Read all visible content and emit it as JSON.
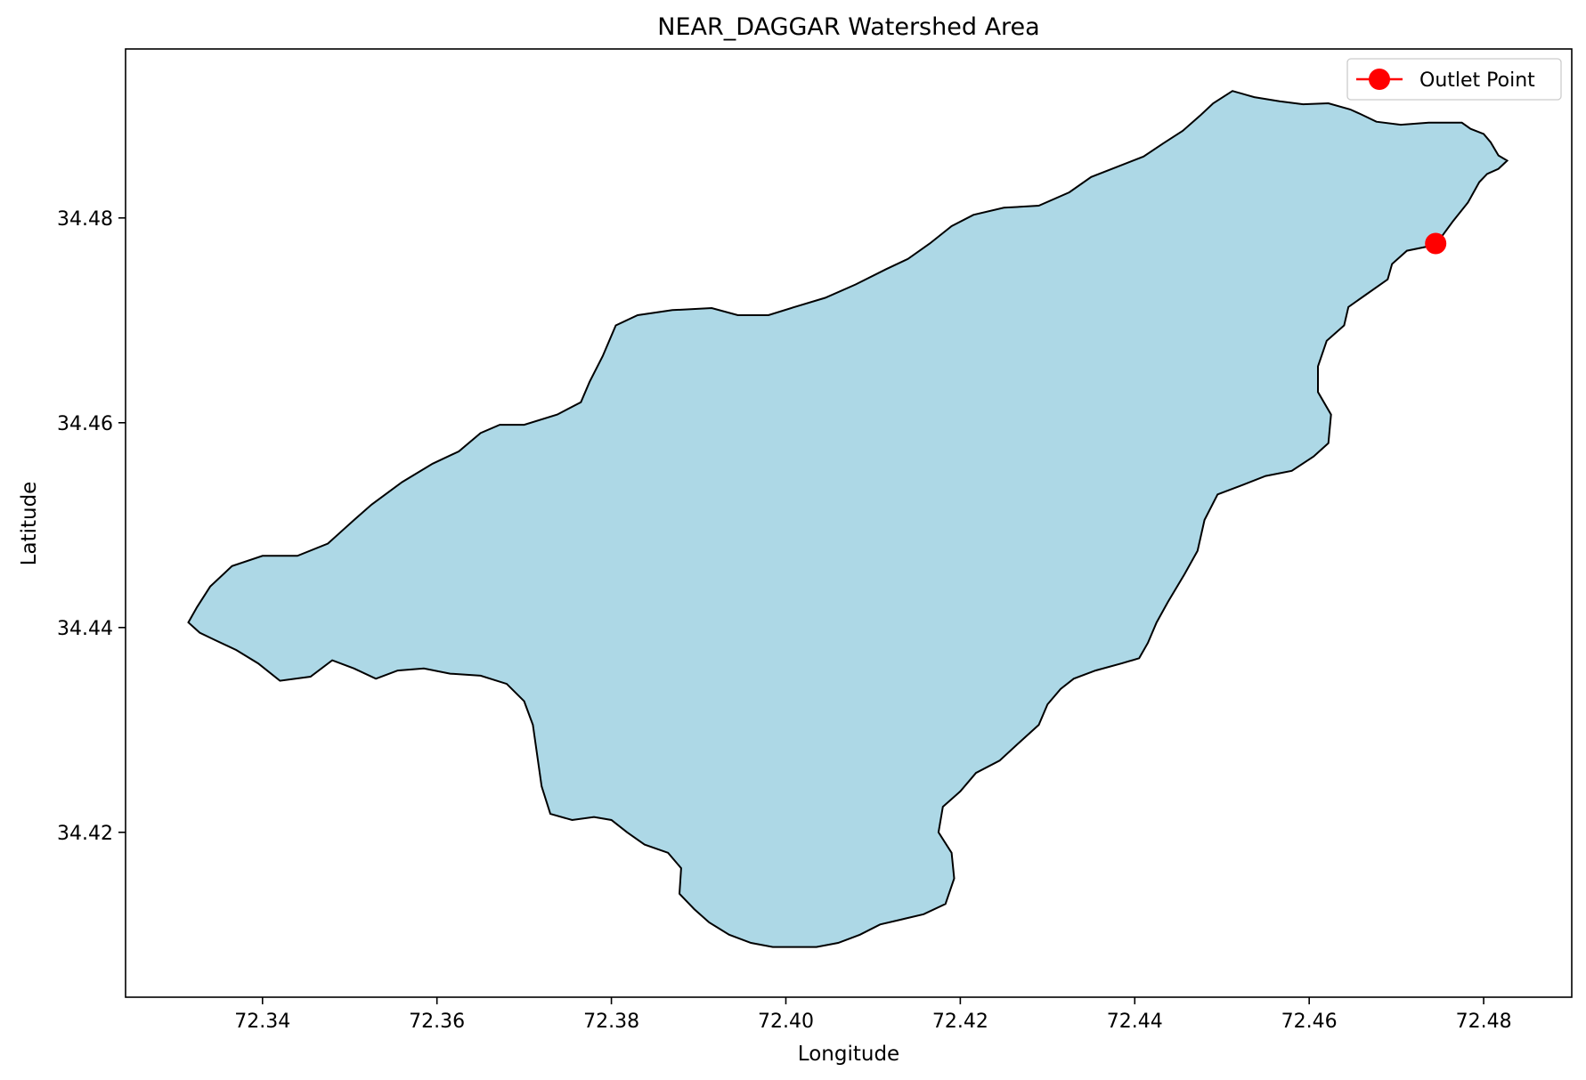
{
  "title": "NEAR_DAGGAR Watershed Area",
  "xlabel": "Longitude",
  "ylabel": "Latitude",
  "colors": {
    "watershed_fill": "#add8e6",
    "watershed_edge": "#000000",
    "outlet": "#ff0000",
    "axes": "#000000",
    "background": "#ffffff"
  },
  "legend": {
    "placement": "top-right",
    "entries": [
      {
        "label": "Outlet Point",
        "marker": "circle",
        "color": "#ff0000"
      }
    ]
  },
  "chart_data": {
    "type": "map",
    "title": "NEAR_DAGGAR Watershed Area",
    "xlabel": "Longitude",
    "ylabel": "Latitude",
    "xlim": [
      72.3243,
      72.4901
    ],
    "ylim": [
      34.4039,
      34.4965
    ],
    "xticks": [
      72.34,
      72.36,
      72.38,
      72.4,
      72.42,
      72.44,
      72.46,
      72.48
    ],
    "xtick_labels": [
      "72.34",
      "72.36",
      "72.38",
      "72.40",
      "72.42",
      "72.44",
      "72.46",
      "72.48"
    ],
    "yticks": [
      34.42,
      34.44,
      34.46,
      34.48
    ],
    "ytick_labels": [
      "34.42",
      "34.44",
      "34.46",
      "34.48"
    ],
    "grid": false,
    "legend_placement": "top-right",
    "outlet_point": {
      "name": "Outlet Point",
      "lon": 72.4745,
      "lat": 34.4775
    },
    "watershed_boundary": [
      [
        72.4512,
        34.4924
      ],
      [
        72.4537,
        34.4918
      ],
      [
        72.4566,
        34.4914
      ],
      [
        72.4593,
        34.4911
      ],
      [
        72.4622,
        34.4912
      ],
      [
        72.4647,
        34.4906
      ],
      [
        72.466,
        34.4901
      ],
      [
        72.4677,
        34.4894
      ],
      [
        72.4705,
        34.4891
      ],
      [
        72.4737,
        34.4893
      ],
      [
        72.4775,
        34.4893
      ],
      [
        72.4785,
        34.4887
      ],
      [
        72.48,
        34.4882
      ],
      [
        72.4808,
        34.4874
      ],
      [
        72.4817,
        34.4861
      ],
      [
        72.4827,
        34.4856
      ],
      [
        72.4817,
        34.4848
      ],
      [
        72.4804,
        34.4843
      ],
      [
        72.4795,
        34.4835
      ],
      [
        72.4782,
        34.4815
      ],
      [
        72.4765,
        34.4797
      ],
      [
        72.4752,
        34.4782
      ],
      [
        72.4735,
        34.4772
      ],
      [
        72.4712,
        34.4768
      ],
      [
        72.4695,
        34.4755
      ],
      [
        72.469,
        34.474
      ],
      [
        72.4665,
        34.4725
      ],
      [
        72.4645,
        34.4713
      ],
      [
        72.464,
        34.4695
      ],
      [
        72.462,
        34.468
      ],
      [
        72.461,
        34.4655
      ],
      [
        72.461,
        34.463
      ],
      [
        72.4625,
        34.4608
      ],
      [
        72.4622,
        34.458
      ],
      [
        72.4605,
        34.4567
      ],
      [
        72.458,
        34.4553
      ],
      [
        72.455,
        34.4548
      ],
      [
        72.452,
        34.4538
      ],
      [
        72.4495,
        34.453
      ],
      [
        72.448,
        34.4505
      ],
      [
        72.4472,
        34.4475
      ],
      [
        72.4457,
        34.4452
      ],
      [
        72.4438,
        34.4425
      ],
      [
        72.4425,
        34.4405
      ],
      [
        72.4415,
        34.4385
      ],
      [
        72.4405,
        34.437
      ],
      [
        72.4385,
        34.4365
      ],
      [
        72.4355,
        34.4358
      ],
      [
        72.433,
        34.435
      ],
      [
        72.4315,
        34.434
      ],
      [
        72.43,
        34.4325
      ],
      [
        72.429,
        34.4305
      ],
      [
        72.4268,
        34.4288
      ],
      [
        72.4245,
        34.427
      ],
      [
        72.4218,
        34.4258
      ],
      [
        72.42,
        34.424
      ],
      [
        72.418,
        34.4225
      ],
      [
        72.4175,
        34.42
      ],
      [
        72.419,
        34.418
      ],
      [
        72.4193,
        34.4155
      ],
      [
        72.4183,
        34.413
      ],
      [
        72.4158,
        34.412
      ],
      [
        72.4133,
        34.4115
      ],
      [
        72.4108,
        34.411
      ],
      [
        72.4085,
        34.41
      ],
      [
        72.406,
        34.4092
      ],
      [
        72.4035,
        34.4088
      ],
      [
        72.4008,
        34.4088
      ],
      [
        72.3985,
        34.4088
      ],
      [
        72.396,
        34.4092
      ],
      [
        72.3935,
        34.41
      ],
      [
        72.3912,
        34.4112
      ],
      [
        72.3895,
        34.4125
      ],
      [
        72.3878,
        34.414
      ],
      [
        72.388,
        34.4165
      ],
      [
        72.3865,
        34.418
      ],
      [
        72.3838,
        34.4188
      ],
      [
        72.3818,
        34.42
      ],
      [
        72.38,
        34.4212
      ],
      [
        72.378,
        34.4215
      ],
      [
        72.3755,
        34.4212
      ],
      [
        72.373,
        34.4218
      ],
      [
        72.372,
        34.4245
      ],
      [
        72.3715,
        34.4275
      ],
      [
        72.371,
        34.4305
      ],
      [
        72.37,
        34.4328
      ],
      [
        72.368,
        34.4345
      ],
      [
        72.365,
        34.4353
      ],
      [
        72.3615,
        34.4355
      ],
      [
        72.3585,
        34.436
      ],
      [
        72.3555,
        34.4358
      ],
      [
        72.353,
        34.435
      ],
      [
        72.3505,
        34.436
      ],
      [
        72.348,
        34.4368
      ],
      [
        72.3455,
        34.4352
      ],
      [
        72.342,
        34.4348
      ],
      [
        72.3395,
        34.4365
      ],
      [
        72.337,
        34.4378
      ],
      [
        72.3345,
        34.4388
      ],
      [
        72.3328,
        34.4395
      ],
      [
        72.3315,
        34.4405
      ],
      [
        72.3325,
        34.442
      ],
      [
        72.334,
        34.444
      ],
      [
        72.3365,
        34.446
      ],
      [
        72.34,
        34.447
      ],
      [
        72.344,
        34.447
      ],
      [
        72.3475,
        34.4482
      ],
      [
        72.3505,
        34.4505
      ],
      [
        72.3525,
        34.452
      ],
      [
        72.356,
        34.4542
      ],
      [
        72.3595,
        34.456
      ],
      [
        72.3625,
        34.4572
      ],
      [
        72.365,
        34.459
      ],
      [
        72.3672,
        34.4598
      ],
      [
        72.37,
        34.4598
      ],
      [
        72.3738,
        34.4608
      ],
      [
        72.3765,
        34.462
      ],
      [
        72.3775,
        34.464
      ],
      [
        72.379,
        34.4665
      ],
      [
        72.3805,
        34.4695
      ],
      [
        72.383,
        34.4705
      ],
      [
        72.387,
        34.471
      ],
      [
        72.3915,
        34.4712
      ],
      [
        72.3945,
        34.4705
      ],
      [
        72.398,
        34.4705
      ],
      [
        72.401,
        34.4713
      ],
      [
        72.4045,
        34.4722
      ],
      [
        72.408,
        34.4735
      ],
      [
        72.4115,
        34.475
      ],
      [
        72.414,
        34.476
      ],
      [
        72.4165,
        34.4775
      ],
      [
        72.419,
        34.4792
      ],
      [
        72.4215,
        34.4803
      ],
      [
        72.425,
        34.481
      ],
      [
        72.429,
        34.4812
      ],
      [
        72.4325,
        34.4825
      ],
      [
        72.435,
        34.484
      ],
      [
        72.438,
        34.485
      ],
      [
        72.441,
        34.486
      ],
      [
        72.4433,
        34.4873
      ],
      [
        72.4455,
        34.4885
      ],
      [
        72.4475,
        34.49
      ],
      [
        72.449,
        34.4912
      ]
    ]
  }
}
